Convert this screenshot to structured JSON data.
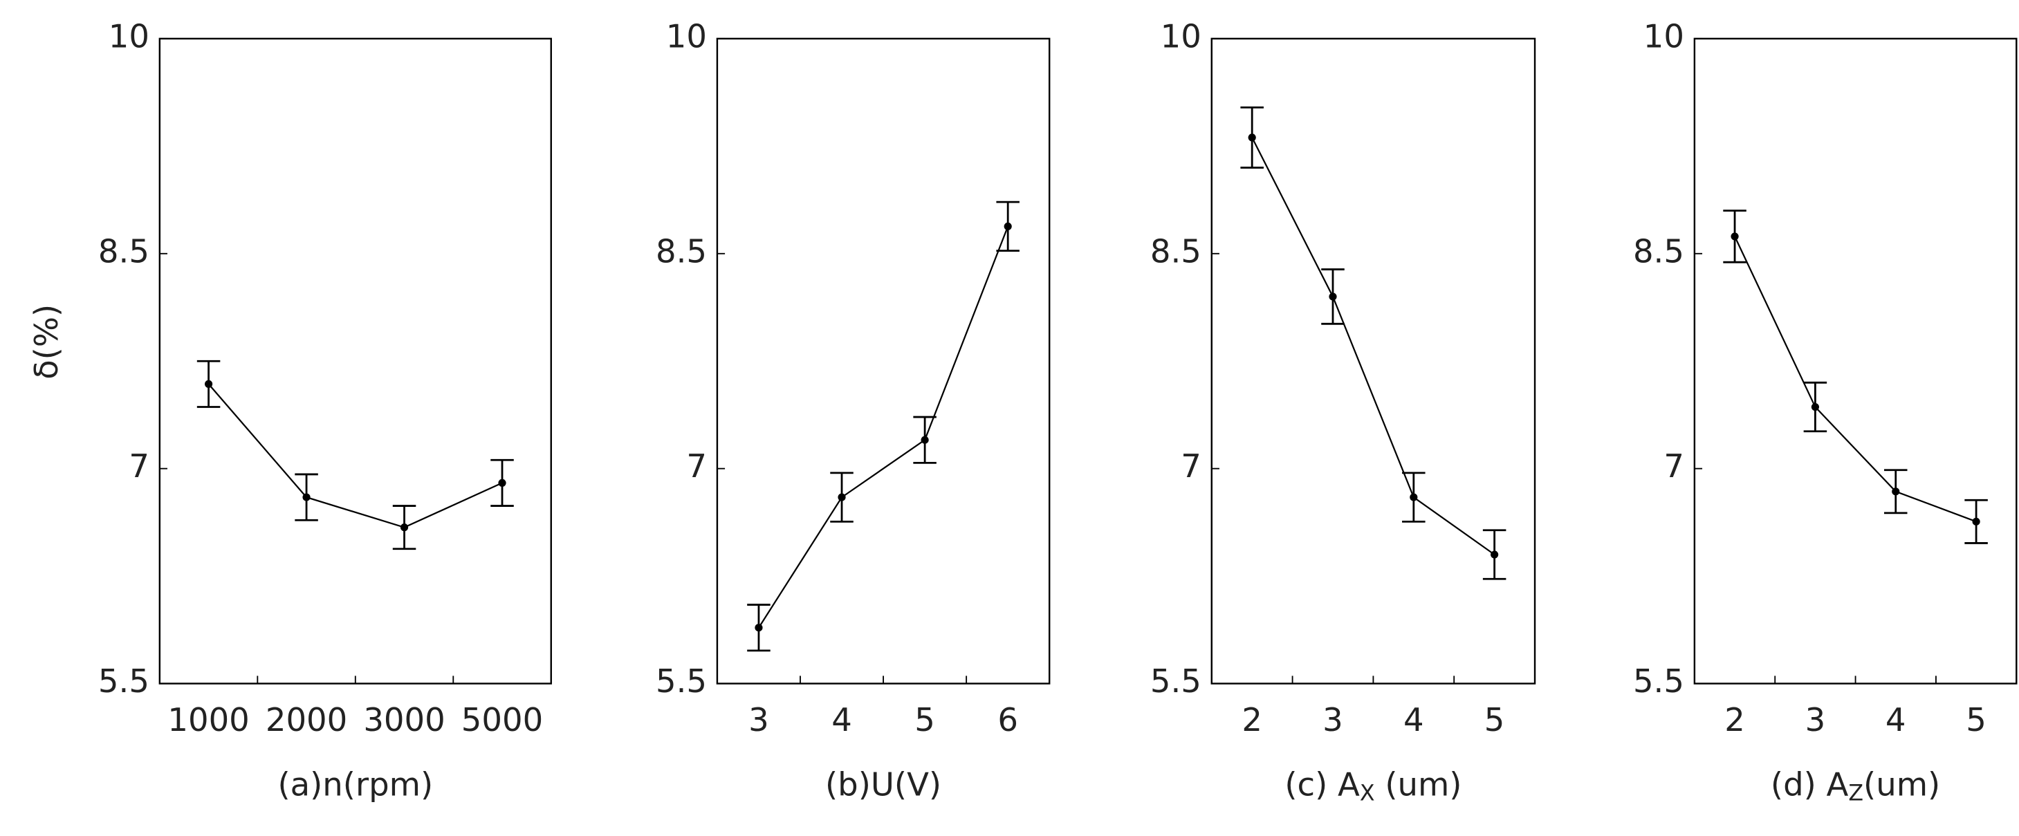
{
  "chart_data": [
    {
      "type": "line",
      "y_label": "δ(%)",
      "x_label_parts": [
        "(a)n(rpm)"
      ],
      "categories": [
        "1000",
        "2000",
        "3000",
        "5000"
      ],
      "series": [
        {
          "color": "#000000",
          "values": [
            7.59,
            6.8,
            6.59,
            6.9
          ],
          "errors": [
            0.16,
            0.16,
            0.15,
            0.16
          ]
        }
      ],
      "ylim": [
        5.5,
        10
      ],
      "yticks": [
        5.5,
        7,
        8.5,
        10
      ]
    },
    {
      "type": "line",
      "x_label_parts": [
        "(b)U(V)"
      ],
      "categories": [
        "3",
        "4",
        "5",
        "6"
      ],
      "series": [
        {
          "color": "#000000",
          "values": [
            5.89,
            6.8,
            7.2,
            8.69
          ],
          "errors": [
            0.16,
            0.17,
            0.16,
            0.17
          ]
        }
      ],
      "ylim": [
        5.5,
        10
      ],
      "yticks": [
        5.5,
        7,
        8.5,
        10
      ]
    },
    {
      "type": "line",
      "x_label_parts": [
        "(c) A",
        "X",
        " (um)"
      ],
      "categories": [
        "2",
        "3",
        "4",
        "5"
      ],
      "series": [
        {
          "color": "#000000",
          "values": [
            9.31,
            8.2,
            6.8,
            6.4
          ],
          "errors": [
            0.21,
            0.19,
            0.17,
            0.17
          ]
        }
      ],
      "ylim": [
        5.5,
        10
      ],
      "yticks": [
        5.5,
        7,
        8.5,
        10
      ]
    },
    {
      "type": "line",
      "x_label_parts": [
        "(d) A",
        "Z",
        "(um)"
      ],
      "categories": [
        "2",
        "3",
        "4",
        "5"
      ],
      "series": [
        {
          "color": "#000000",
          "values": [
            8.62,
            7.43,
            6.84,
            6.63
          ],
          "errors": [
            0.18,
            0.17,
            0.15,
            0.15
          ]
        }
      ],
      "ylim": [
        5.5,
        10
      ],
      "yticks": [
        5.5,
        7,
        8.5,
        10
      ]
    }
  ]
}
